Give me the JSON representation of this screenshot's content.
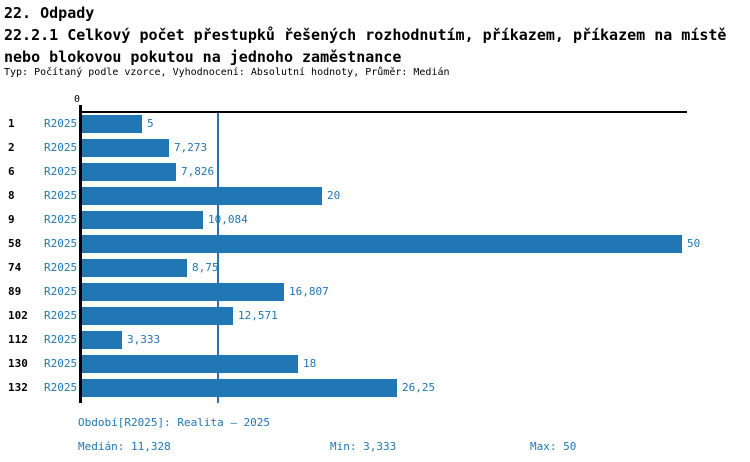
{
  "header": {
    "title": "22. Odpady",
    "subtitle": "22.2.1 Celkový počet přestupků řešených rozhodnutím, příkazem, příkazem na místě nebo blokovou pokutou na jednoho zaměstnance",
    "meta": "Typ: Počítaný podle vzorce, Vyhodnocení: Absolutní hodnoty, Průměr: Medián"
  },
  "chart_data": {
    "type": "bar",
    "orientation": "horizontal",
    "title": "22.2.1 Celkový počet přestupků řešených rozhodnutím, příkazem, příkazem na místě nebo blokovou pokutou na jednoho zaměstnance",
    "categories": [
      "1",
      "2",
      "6",
      "8",
      "9",
      "58",
      "74",
      "89",
      "102",
      "112",
      "130",
      "132"
    ],
    "series": [
      {
        "name": "R2025",
        "values": [
          5,
          7.273,
          7.826,
          20,
          10.084,
          50,
          8.75,
          16.807,
          12.571,
          3.333,
          18,
          26.25
        ]
      }
    ],
    "value_labels": [
      "5",
      "7,273",
      "7,826",
      "20",
      "10,084",
      "50",
      "8,75",
      "16,807",
      "12,571",
      "3,333",
      "18",
      "26,25"
    ],
    "xlim": [
      0,
      50
    ],
    "x_tick_labels": [
      "0"
    ],
    "median": 11.328,
    "grid": false,
    "legend": "none",
    "bar_color": "#2077b4",
    "text_blue": "#2077b4",
    "axis_color": "#000000"
  },
  "footer": {
    "period": "Období[R2025]: Realita – 2025",
    "median": "Medián: 11,328",
    "min": "Min: 3,333",
    "max": "Max: 50"
  }
}
